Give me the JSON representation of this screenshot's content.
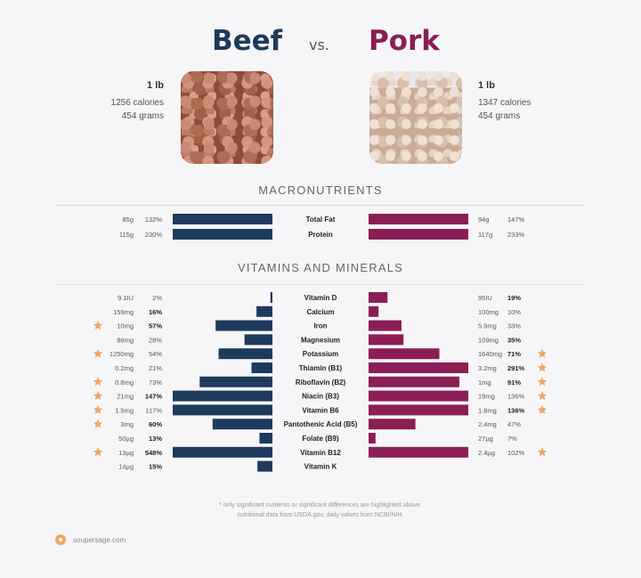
{
  "header": {
    "left": "Beef",
    "vs": "vs.",
    "right": "Pork"
  },
  "beef": {
    "amount": "1 lb",
    "calories": "1256 calories",
    "grams": "454 grams"
  },
  "pork": {
    "amount": "1 lb",
    "calories": "1347 calories",
    "grams": "454 grams"
  },
  "sections": {
    "macro": "MACRONUTRIENTS",
    "vitamins": "VITAMINS AND MINERALS"
  },
  "colors": {
    "beef": "#1e3a5c",
    "pork": "#8b1e55",
    "star": "#f0a662"
  },
  "chart_data": [
    {
      "type": "bar",
      "title": "MACRONUTRIENTS",
      "rows": [
        {
          "name": "Total Fat",
          "beef_amt": "85g",
          "beef_pct": "132%",
          "beef_val": 132,
          "beef_bold": false,
          "beef_star": false,
          "pork_amt": "94g",
          "pork_pct": "147%",
          "pork_val": 147,
          "pork_bold": false,
          "pork_star": false
        },
        {
          "name": "Protein",
          "beef_amt": "115g",
          "beef_pct": "230%",
          "beef_val": 230,
          "beef_bold": false,
          "beef_star": false,
          "pork_amt": "117g",
          "pork_pct": "233%",
          "pork_val": 233,
          "pork_bold": false,
          "pork_star": false
        }
      ]
    },
    {
      "type": "bar",
      "title": "VITAMINS AND MINERALS",
      "rows": [
        {
          "name": "Vitamin D",
          "beef_amt": "9.1IU",
          "beef_pct": "2%",
          "beef_val": 2,
          "beef_bold": false,
          "beef_star": false,
          "pork_amt": "95IU",
          "pork_pct": "19%",
          "pork_val": 19,
          "pork_bold": true,
          "pork_star": false
        },
        {
          "name": "Calcium",
          "beef_amt": "159mg",
          "beef_pct": "16%",
          "beef_val": 16,
          "beef_bold": true,
          "beef_star": false,
          "pork_amt": "100mg",
          "pork_pct": "10%",
          "pork_val": 10,
          "pork_bold": false,
          "pork_star": false
        },
        {
          "name": "Iron",
          "beef_amt": "10mg",
          "beef_pct": "57%",
          "beef_val": 57,
          "beef_bold": true,
          "beef_star": true,
          "pork_amt": "5.9mg",
          "pork_pct": "33%",
          "pork_val": 33,
          "pork_bold": false,
          "pork_star": false
        },
        {
          "name": "Magnesium",
          "beef_amt": "86mg",
          "beef_pct": "28%",
          "beef_val": 28,
          "beef_bold": false,
          "beef_star": false,
          "pork_amt": "109mg",
          "pork_pct": "35%",
          "pork_val": 35,
          "pork_bold": true,
          "pork_star": false
        },
        {
          "name": "Potassium",
          "beef_amt": "1250mg",
          "beef_pct": "54%",
          "beef_val": 54,
          "beef_bold": false,
          "beef_star": true,
          "pork_amt": "1640mg",
          "pork_pct": "71%",
          "pork_val": 71,
          "pork_bold": true,
          "pork_star": true
        },
        {
          "name": "Thiamin (B1)",
          "beef_amt": "0.2mg",
          "beef_pct": "21%",
          "beef_val": 21,
          "beef_bold": false,
          "beef_star": false,
          "pork_amt": "3.2mg",
          "pork_pct": "291%",
          "pork_val": 291,
          "pork_bold": true,
          "pork_star": true
        },
        {
          "name": "Riboflavin (B2)",
          "beef_amt": "0.8mg",
          "beef_pct": "73%",
          "beef_val": 73,
          "beef_bold": false,
          "beef_star": true,
          "pork_amt": "1mg",
          "pork_pct": "91%",
          "pork_val": 91,
          "pork_bold": true,
          "pork_star": true
        },
        {
          "name": "Niacin (B3)",
          "beef_amt": "21mg",
          "beef_pct": "147%",
          "beef_val": 147,
          "beef_bold": true,
          "beef_star": true,
          "pork_amt": "19mg",
          "pork_pct": "136%",
          "pork_val": 136,
          "pork_bold": false,
          "pork_star": true
        },
        {
          "name": "Vitamin B6",
          "beef_amt": "1.5mg",
          "beef_pct": "117%",
          "beef_val": 117,
          "beef_bold": false,
          "beef_star": true,
          "pork_amt": "1.8mg",
          "pork_pct": "136%",
          "pork_val": 136,
          "pork_bold": true,
          "pork_star": true
        },
        {
          "name": "Pantothenic Acid (B5)",
          "beef_amt": "3mg",
          "beef_pct": "60%",
          "beef_val": 60,
          "beef_bold": true,
          "beef_star": true,
          "pork_amt": "2.4mg",
          "pork_pct": "47%",
          "pork_val": 47,
          "pork_bold": false,
          "pork_star": false
        },
        {
          "name": "Folate (B9)",
          "beef_amt": "50µg",
          "beef_pct": "13%",
          "beef_val": 13,
          "beef_bold": true,
          "beef_star": false,
          "pork_amt": "27µg",
          "pork_pct": "7%",
          "pork_val": 7,
          "pork_bold": false,
          "pork_star": false
        },
        {
          "name": "Vitamin B12",
          "beef_amt": "13µg",
          "beef_pct": "548%",
          "beef_val": 548,
          "beef_bold": true,
          "beef_star": true,
          "pork_amt": "2.4µg",
          "pork_pct": "102%",
          "pork_val": 102,
          "pork_bold": false,
          "pork_star": true
        },
        {
          "name": "Vitamin K",
          "beef_amt": "14µg",
          "beef_pct": "15%",
          "beef_val": 15,
          "beef_bold": true,
          "beef_star": false,
          "pork_amt": "",
          "pork_pct": "",
          "pork_val": 0,
          "pork_bold": false,
          "pork_star": false
        }
      ]
    }
  ],
  "footnote": {
    "line1": "* only significant nutrients or significant differences are highlighted above.",
    "line2": "nutritional data from USDA.gov, daily values from NCBI/NIH."
  },
  "brand": {
    "site": "soupersage.com",
    "logo_icon": "soupersage-logo-icon",
    "star_icon": "star-icon"
  }
}
